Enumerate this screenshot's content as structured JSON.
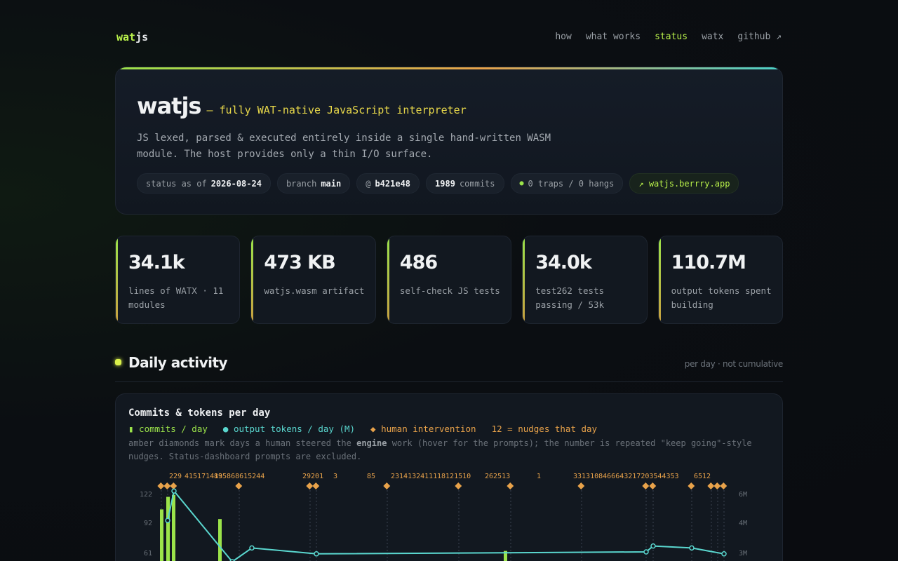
{
  "nav": {
    "logo_a": "wat",
    "logo_b": "js",
    "links": [
      "how",
      "what works",
      "status",
      "watx",
      "github ↗"
    ]
  },
  "hero": {
    "name": "watjs",
    "tagline": "— fully WAT-native JavaScript interpreter",
    "desc_line1": "JS lexed, parsed & executed entirely inside a single hand-written WASM",
    "desc_line2": "module. The host provides only a thin I/O surface.",
    "chips": {
      "status_label": "status as of",
      "status_date": "2026-08-24",
      "branch_label": "branch",
      "branch": "main",
      "commit_prefix": "@",
      "commit": "b421e48",
      "commits_count": "1989",
      "commits_label": "commits",
      "traps": "0 traps / 0 hangs",
      "site": "↗ watjs.berrry.app"
    }
  },
  "stats": [
    {
      "value": "34.1k",
      "label": "lines of WATX · 11 modules"
    },
    {
      "value": "473 KB",
      "label": "watjs.wasm artifact"
    },
    {
      "value": "486",
      "label": "self-check JS tests"
    },
    {
      "value": "34.0k",
      "label": "test262 tests passing / 53k"
    },
    {
      "value": "110.7M",
      "label": "output tokens spent building"
    }
  ],
  "section": {
    "title": "Daily activity",
    "note": "per day · not cumulative"
  },
  "chart_card": {
    "title": "Commits & tokens per day",
    "legend": {
      "commits": "▮ commits / day",
      "tokens": "● output tokens / day (M)",
      "human": "◆ human intervention",
      "nudges": "12 = nudges that day"
    },
    "desc_a": "amber diamonds mark days a human steered the ",
    "desc_b": "engine",
    "desc_c": " work (hover for the prompts); the number is repeated \"keep going\"-style",
    "desc_line2": "nudges. Status-dashboard prompts are excluded."
  },
  "chart_data": {
    "type": "bar",
    "title": "Commits & tokens per day",
    "y_left_ticks": [
      122,
      92,
      61
    ],
    "y_right_ticks": [
      "6M",
      "4M",
      "3M"
    ],
    "commits_visible": [
      105,
      118,
      120,
      95,
      62
    ],
    "tokens_M_visible": [
      4.6,
      6.1,
      6.4,
      2.5,
      3.0,
      3.2
    ],
    "nudge_labels": [
      "229",
      "415171413",
      "8 9 5 8 6 8 6 15 2 4 4",
      "2 9 2 0 1",
      "3",
      "8 5",
      "2 3 1 4 1 3 2 4 1 1 1",
      "1 8 1 2 1 5 1 0",
      "2 6 2 5 1 3",
      "1",
      "3 3 1 3 1 0 8 4 6 6 6 4 3 2 1 7 2 0 3 5 4 4 3 5 3",
      "6 5 1 2"
    ],
    "colors": {
      "commits": "#9be34a",
      "tokens": "#5ad7cf",
      "human": "#e8a24a"
    }
  }
}
